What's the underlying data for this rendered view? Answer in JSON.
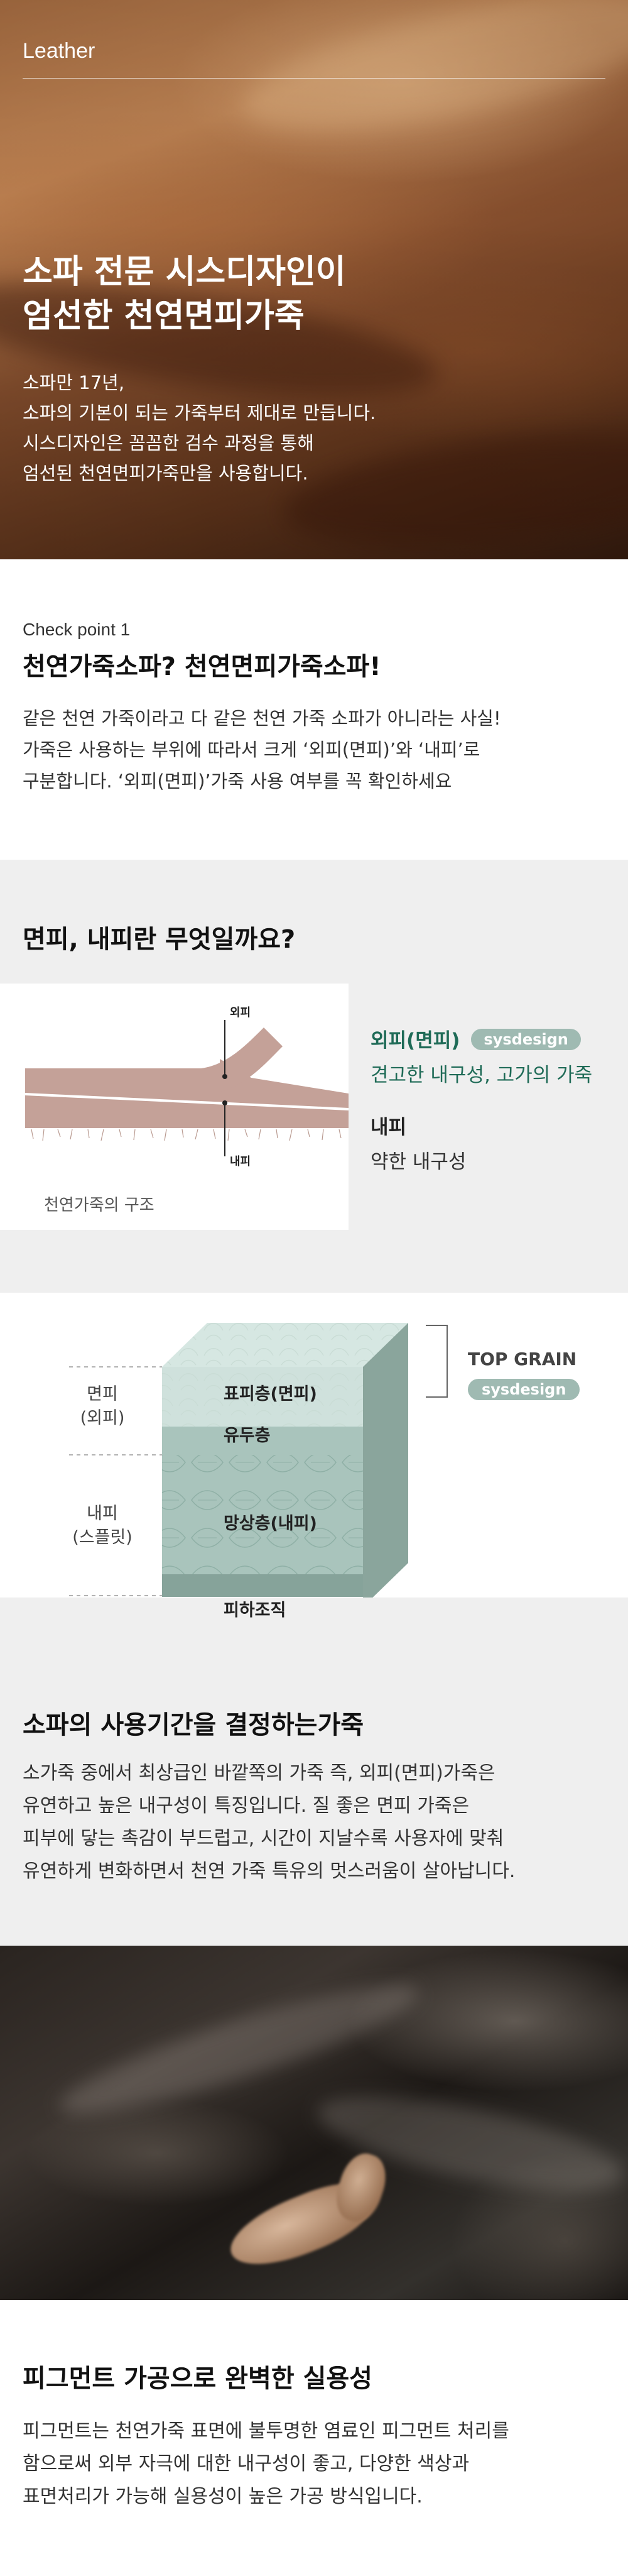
{
  "hero": {
    "label": "Leather",
    "title_lines": [
      "소파 전문 시스디자인이",
      "엄선한 천연면피가죽"
    ],
    "desc_lines": [
      "소파만 17년,",
      "소파의 기본이 되는 가죽부터 제대로 만듭니다.",
      "시스디자인은 꼼꼼한 검수 과정을 통해",
      "엄선된 천연면피가죽만을 사용합니다."
    ]
  },
  "checkpoint": {
    "label": "Check point 1",
    "title": "천연가죽소파? 천연면피가죽소파!",
    "desc_lines": [
      "같은 천연 가죽이라고 다 같은 천연 가죽 소파가 아니라는 사실!",
      "가죽은 사용하는 부위에 따라서 크게 ‘외피(면피)’와 ‘내피’로",
      "구분합니다. ‘외피(면피)’가죽 사용 여부를 꼭 확인하세요"
    ]
  },
  "skin": {
    "title": "면피, 내피란 무엇일까요?",
    "diagram": {
      "outer_label": "외피",
      "inner_label": "내피",
      "caption": "천연가죽의 구조"
    },
    "outer_def": {
      "title": "외피(면피)",
      "badge": "sysdesign",
      "desc": "견고한 내구성, 고가의 가죽",
      "color": "#1f6b57"
    },
    "inner_def": {
      "title": "내피",
      "desc": "약한 내구성"
    }
  },
  "layers": {
    "top_grain_label": "TOP GRAIN",
    "badge": "sysdesign",
    "left_top": [
      "면피",
      "(외피)"
    ],
    "left_bottom": [
      "내피",
      "(스플릿)"
    ],
    "layer_names": [
      "표피층(면피)",
      "유두층",
      "망상층(내피)",
      "피하조직"
    ]
  },
  "lifespan": {
    "title": "소파의 사용기간을 결정하는가죽",
    "desc_lines": [
      "소가죽 중에서 최상급인 바깥쪽의 가죽 즉, 외피(면피)가죽은",
      "유연하고 높은 내구성이 특징입니다.  질 좋은 면피 가죽은",
      "피부에 닿는 촉감이 부드럽고, 시간이 지날수록 사용자에 맞춰",
      "유연하게 변화하면서 천연 가죽 특유의 멋스러움이 살아납니다."
    ]
  },
  "pigment": {
    "title": "피그먼트 가공으로 완벽한 실용성",
    "desc_lines": [
      "피그먼트는 천연가죽 표면에 불투명한 염료인 피그먼트 처리를",
      "함으로써 외부 자극에 대한 내구성이 좋고, 다양한 색상과",
      "표면처리가 가능해 실용성이 높은 가공 방식입니다."
    ]
  }
}
